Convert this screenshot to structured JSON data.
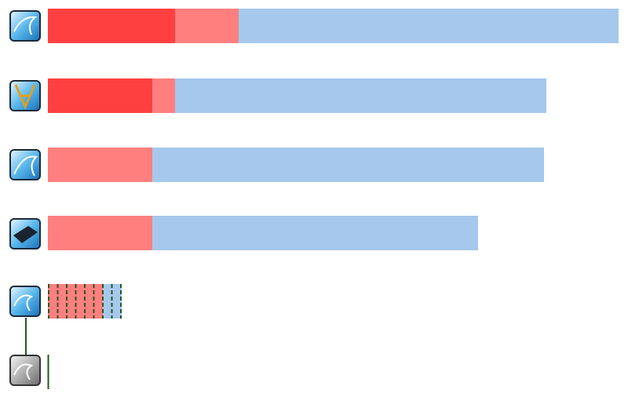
{
  "chart_data": {
    "type": "stacked-bar-horizontal",
    "categories": [
      null,
      null,
      null,
      null,
      null,
      null
    ],
    "series": [
      {
        "color": "#ff4040",
        "values": [
          162,
          133,
          0,
          0,
          0,
          0
        ]
      },
      {
        "color": "#ff7f7f",
        "values": [
          81,
          29,
          133,
          133,
          70,
          0
        ]
      },
      {
        "color": "#a6c8ec",
        "values": [
          484,
          473,
          499,
          415,
          24,
          0
        ]
      }
    ],
    "xlim": [
      0,
      727
    ],
    "dashed": [
      false,
      false,
      false,
      false,
      true,
      false
    ]
  }
}
